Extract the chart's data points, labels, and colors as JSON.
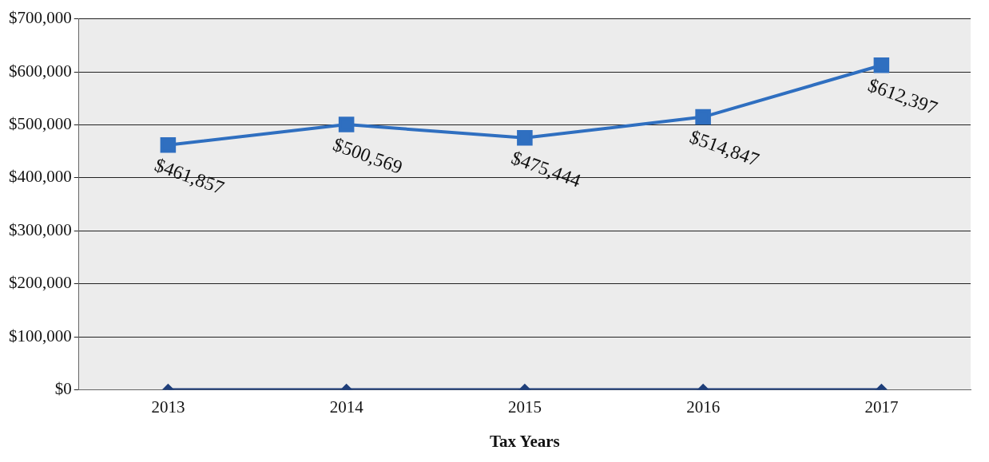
{
  "chart_data": {
    "type": "line",
    "xlabel": "Tax Years",
    "categories": [
      "2013",
      "2014",
      "2015",
      "2016",
      "2017"
    ],
    "series": [
      {
        "color": "#2f6fc0",
        "marker": "square",
        "values": [
          461857,
          500569,
          475444,
          514847,
          612397
        ],
        "value_labels": [
          "$461,857",
          "$500,569",
          "$475,444",
          "$514,847",
          "$612,397"
        ]
      },
      {
        "color": "#1f3f7a",
        "marker": "diamond",
        "values": [
          0,
          0,
          0,
          0,
          0
        ]
      }
    ],
    "ylim": [
      0,
      700000
    ],
    "yticks": [
      {
        "value": 0,
        "label": "$0"
      },
      {
        "value": 100000,
        "label": "$100,000"
      },
      {
        "value": 200000,
        "label": "$200,000"
      },
      {
        "value": 300000,
        "label": "$300,000"
      },
      {
        "value": 400000,
        "label": "$400,000"
      },
      {
        "value": 500000,
        "label": "$500,000"
      },
      {
        "value": 600000,
        "label": "$600,000"
      },
      {
        "value": 700000,
        "label": "$700,000"
      }
    ],
    "grid": "y",
    "legend": false
  }
}
